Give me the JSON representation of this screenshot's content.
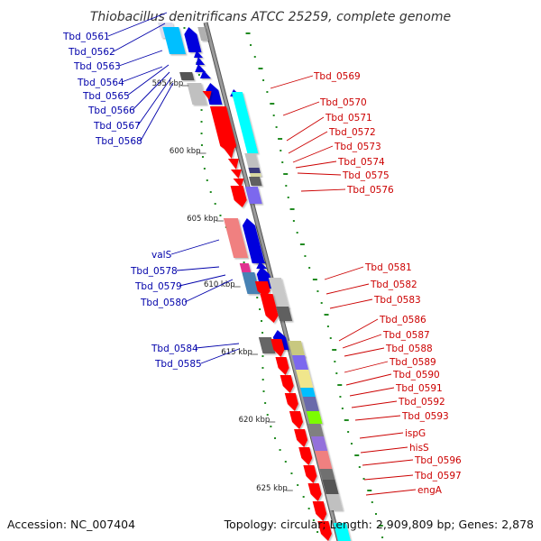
{
  "title": "Thiobacillus denitrificans ATCC 25259, complete genome",
  "footer": {
    "accession": "Accession: NC_007404",
    "topology": "Topology: circular; Length: 2,909,809 bp; Genes: 2,878"
  },
  "scale_ticks": [
    {
      "label": "595 kbp"
    },
    {
      "label": "600 kbp"
    },
    {
      "label": "605 kbp"
    },
    {
      "label": "610 kbp"
    },
    {
      "label": "615 kbp"
    },
    {
      "label": "620 kbp"
    },
    {
      "label": "625 kbp"
    }
  ],
  "left_labels": [
    {
      "label": "Tbd_0561"
    },
    {
      "label": "Tbd_0562"
    },
    {
      "label": "Tbd_0563"
    },
    {
      "label": "Tbd_0564"
    },
    {
      "label": "Tbd_0565"
    },
    {
      "label": "Tbd_0566"
    },
    {
      "label": "Tbd_0567"
    },
    {
      "label": "Tbd_0568"
    },
    {
      "label": "valS"
    },
    {
      "label": "Tbd_0578"
    },
    {
      "label": "Tbd_0579"
    },
    {
      "label": "Tbd_0580"
    },
    {
      "label": "Tbd_0584"
    },
    {
      "label": "Tbd_0585"
    }
  ],
  "right_labels": [
    {
      "label": "Tbd_0569"
    },
    {
      "label": "Tbd_0570"
    },
    {
      "label": "Tbd_0571"
    },
    {
      "label": "Tbd_0572"
    },
    {
      "label": "Tbd_0573"
    },
    {
      "label": "Tbd_0574"
    },
    {
      "label": "Tbd_0575"
    },
    {
      "label": "Tbd_0576"
    },
    {
      "label": "Tbd_0581"
    },
    {
      "label": "Tbd_0582"
    },
    {
      "label": "Tbd_0583"
    },
    {
      "label": "Tbd_0586"
    },
    {
      "label": "Tbd_0587"
    },
    {
      "label": "Tbd_0588"
    },
    {
      "label": "Tbd_0589"
    },
    {
      "label": "Tbd_0590"
    },
    {
      "label": "Tbd_0591"
    },
    {
      "label": "Tbd_0592"
    },
    {
      "label": "Tbd_0593"
    },
    {
      "label": "ispG"
    },
    {
      "label": "hisS"
    },
    {
      "label": "Tbd_0596"
    },
    {
      "label": "Tbd_0597"
    },
    {
      "label": "engA"
    }
  ],
  "colors": {
    "forward_cds": "#cc0000",
    "reverse_cds": "#0000dd",
    "backbone": "#888888",
    "left_label": "#0000aa",
    "right_label": "#cc0000",
    "gc_dots": "#228b22"
  }
}
